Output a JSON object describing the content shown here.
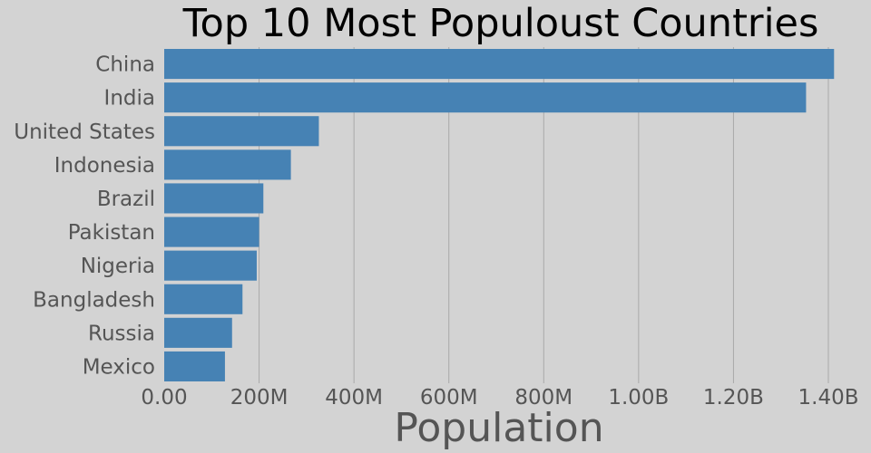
{
  "chart_data": {
    "type": "bar",
    "orientation": "horizontal",
    "title": "Top 10 Most Populoust Countries",
    "xlabel": "Population",
    "ylabel": "",
    "categories": [
      "China",
      "India",
      "United States",
      "Indonesia",
      "Brazil",
      "Pakistan",
      "Nigeria",
      "Bangladesh",
      "Russia",
      "Mexico"
    ],
    "values": [
      1412000000,
      1353000000,
      326000000,
      267000000,
      209000000,
      200000000,
      195000000,
      165000000,
      143000000,
      128000000
    ],
    "xlim": [
      0,
      1400000000
    ],
    "x_ticks": [
      0,
      200000000,
      400000000,
      600000000,
      800000000,
      1000000000,
      1200000000,
      1400000000
    ],
    "x_tick_labels": [
      "0.00",
      "200M",
      "400M",
      "600M",
      "800M",
      "1.00B",
      "1.20B",
      "1.40B"
    ],
    "grid": "vertical",
    "bar_color": "#4682b4",
    "background_color": "#d3d3d3"
  }
}
